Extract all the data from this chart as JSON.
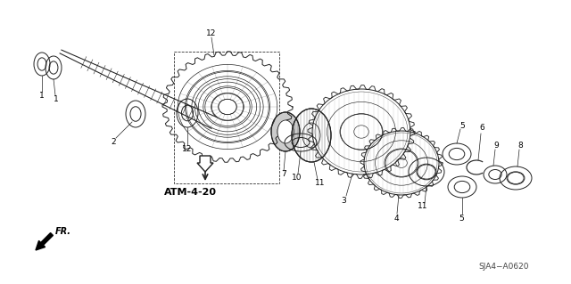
{
  "bg_color": "#ffffff",
  "line_color": "#222222",
  "atm_label": "ATM-4-20",
  "ref_label": "SJA4−A0620",
  "fig_w": 6.4,
  "fig_h": 3.19,
  "dpi": 100
}
